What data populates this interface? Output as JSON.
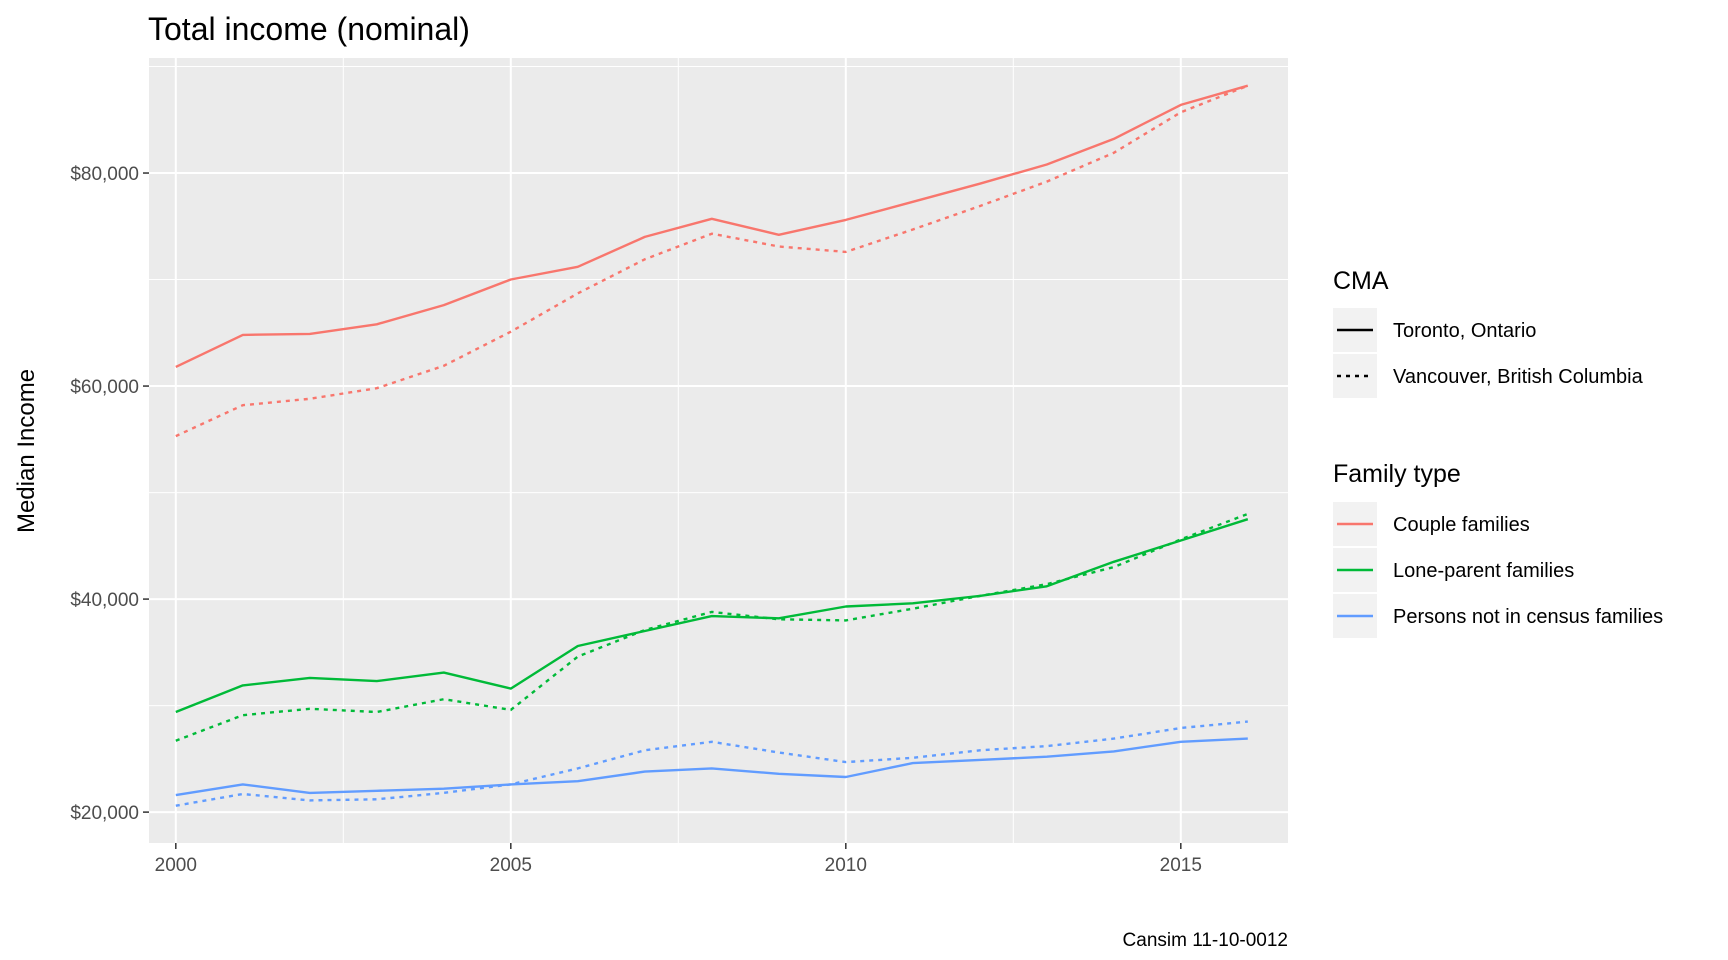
{
  "chart_data": {
    "type": "line",
    "title": "Total income (nominal)",
    "xlabel": "",
    "ylabel": "Median Income",
    "caption": "Cansim 11-10-0012",
    "xlim": [
      1999.6,
      2016.6
    ],
    "ylim": [
      17100,
      90800
    ],
    "x_ticks": [
      2000,
      2005,
      2010,
      2015
    ],
    "x_tick_labels": [
      "2000",
      "2005",
      "2010",
      "2015"
    ],
    "y_ticks": [
      20000,
      40000,
      60000,
      80000
    ],
    "y_tick_labels": [
      "$20,000",
      "$40,000",
      "$60,000",
      "$80,000"
    ],
    "grid": true,
    "legend_position": "right",
    "x": [
      2000,
      2001,
      2002,
      2003,
      2004,
      2005,
      2006,
      2007,
      2008,
      2009,
      2010,
      2011,
      2012,
      2013,
      2014,
      2015,
      2016
    ],
    "legend_cma": {
      "title": "CMA",
      "entries": [
        {
          "label": "Toronto, Ontario",
          "linetype": "solid"
        },
        {
          "label": "Vancouver, British Columbia",
          "linetype": "dotted"
        }
      ]
    },
    "legend_family": {
      "title": "Family type",
      "entries": [
        {
          "label": "Couple families",
          "color": "#F8766D"
        },
        {
          "label": "Lone-parent families",
          "color": "#00BA38"
        },
        {
          "label": "Persons not in census families",
          "color": "#619CFF"
        }
      ]
    },
    "series": [
      {
        "family": "Couple families",
        "cma": "Toronto, Ontario",
        "color": "#F8766D",
        "linetype": "solid",
        "values": [
          61800,
          64800,
          64900,
          65800,
          67600,
          70000,
          71200,
          74000,
          75700,
          74200,
          75600,
          77300,
          79000,
          80800,
          83200,
          86400,
          88200
        ]
      },
      {
        "family": "Couple families",
        "cma": "Vancouver, British Columbia",
        "color": "#F8766D",
        "linetype": "dotted",
        "values": [
          55300,
          58200,
          58800,
          59800,
          61900,
          65100,
          68700,
          71900,
          74300,
          73100,
          72600,
          74700,
          76900,
          79200,
          81900,
          85700,
          88200
        ]
      },
      {
        "family": "Lone-parent families",
        "cma": "Toronto, Ontario",
        "color": "#00BA38",
        "linetype": "solid",
        "values": [
          29400,
          31900,
          32600,
          32300,
          33100,
          31600,
          35600,
          37000,
          38400,
          38200,
          39300,
          39600,
          40300,
          41200,
          43500,
          45500,
          47500
        ]
      },
      {
        "family": "Lone-parent families",
        "cma": "Vancouver, British Columbia",
        "color": "#00BA38",
        "linetype": "dotted",
        "values": [
          26700,
          29100,
          29700,
          29400,
          30600,
          29600,
          34600,
          37100,
          38800,
          38100,
          38000,
          39100,
          40300,
          41400,
          43000,
          45600,
          48000
        ]
      },
      {
        "family": "Persons not in census families",
        "cma": "Toronto, Ontario",
        "color": "#619CFF",
        "linetype": "solid",
        "values": [
          21600,
          22600,
          21800,
          22000,
          22200,
          22600,
          22900,
          23800,
          24100,
          23600,
          23300,
          24600,
          24900,
          25200,
          25700,
          26600,
          26900
        ]
      },
      {
        "family": "Persons not in census families",
        "cma": "Vancouver, British Columbia",
        "color": "#619CFF",
        "linetype": "dotted",
        "values": [
          20600,
          21700,
          21100,
          21200,
          21800,
          22600,
          24100,
          25800,
          26600,
          25600,
          24700,
          25100,
          25800,
          26200,
          26900,
          27900,
          28500
        ]
      }
    ]
  },
  "colors": {
    "panel_background": "#EBEBEB",
    "grid_line": "#FFFFFF",
    "legend_key_background": "#F2F2F2"
  }
}
